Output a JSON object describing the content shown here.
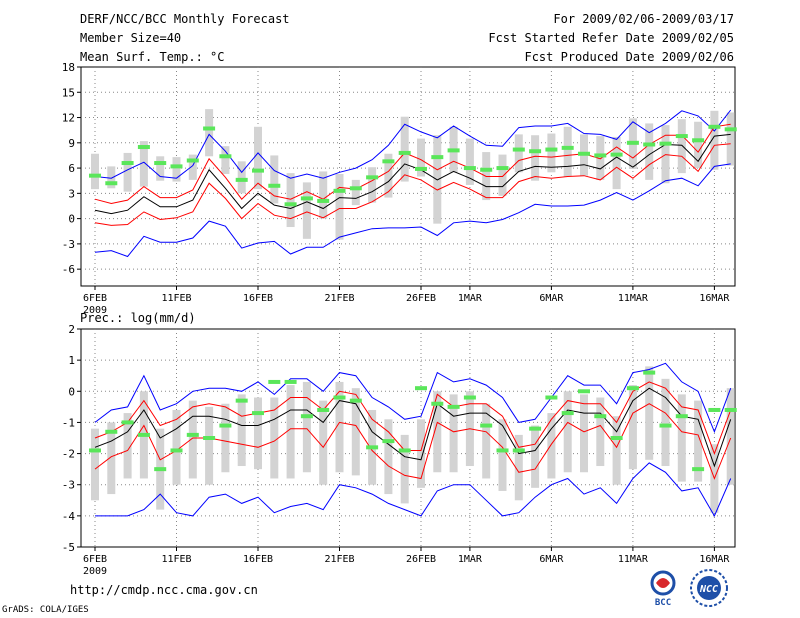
{
  "header": {
    "title": "DERF/NCC/BCC Monthly Forecast",
    "member_size": "Member Size=40",
    "variable1": "Mean Surf. Temp.: °C",
    "period": "For 2009/02/06-2009/03/17",
    "fcst_started": "Fcst Started Refer Date 2009/02/05",
    "fcst_produced": "Fcst Produced Date 2009/02/06"
  },
  "footer": {
    "url": "http://cmdp.ncc.cma.gov.cn",
    "credit": "GrADS: COLA/IGES",
    "logo1": "BCC",
    "logo2": "NCC"
  },
  "colors": {
    "max": "#0000ff",
    "min": "#0000ff",
    "upper": "#ff0000",
    "lower": "#ff0000",
    "mean": "#000000",
    "median": "#5ae65a",
    "box": "#d3d3d3"
  },
  "chart_data": [
    {
      "type": "line",
      "title": "Mean Surf. Temp.: °C",
      "ylim": [
        -8,
        18
      ],
      "yticks": [
        "-6",
        "-3",
        "0",
        "3",
        "6",
        "9",
        "12",
        "15",
        "18"
      ],
      "xticks": [
        "6FEB",
        "11FEB",
        "16FEB",
        "21FEB",
        "26FEB",
        "1MAR",
        "6MAR",
        "11MAR",
        "16MAR"
      ],
      "year_label": "2009",
      "series": [
        {
          "name": "max",
          "values": [
            -4,
            -3.8,
            -4.5,
            -2.1,
            -2.8,
            -2.8,
            -2.3,
            -0.3,
            -0.9,
            -3.5,
            -2.9,
            -2.7,
            -4.2,
            -3.4,
            -3.4,
            -2.2,
            -1.7,
            -1.2,
            -1.1,
            -1.1,
            -1.0,
            -2.0,
            -0.5,
            -0.3,
            -0.5,
            -0.1,
            0.7,
            1.7,
            1.5,
            1.5,
            1.6,
            2.2,
            3.1,
            2.2,
            3.3,
            4.5,
            4.8,
            3.9,
            6.2,
            6.5
          ]
        },
        {
          "name": "upper",
          "values": [
            2.3,
            1.8,
            2.2,
            3.8,
            2.5,
            2.5,
            3.4,
            7.1,
            4.9,
            2.3,
            4.2,
            2.7,
            2.3,
            3.2,
            2.3,
            3.7,
            3.5,
            4.5,
            5.6,
            7.8,
            7.0,
            5.8,
            6.8,
            6.0,
            5.0,
            5.0,
            6.9,
            7.4,
            7.3,
            7.5,
            7.7,
            7.1,
            8.5,
            7.2,
            8.8,
            9.9,
            9.9,
            7.9,
            10.9,
            11.2
          ]
        },
        {
          "name": "mean",
          "values": [
            1.0,
            0.6,
            1.0,
            2.6,
            1.4,
            1.4,
            2.2,
            5.8,
            3.6,
            1.2,
            3.0,
            1.6,
            1.2,
            2.0,
            1.2,
            2.5,
            2.4,
            3.2,
            4.4,
            6.5,
            5.8,
            4.6,
            5.6,
            4.8,
            3.8,
            3.8,
            5.6,
            6.2,
            6.1,
            6.2,
            6.4,
            5.9,
            7.3,
            6.1,
            7.6,
            8.8,
            8.7,
            6.8,
            9.8,
            10.0
          ]
        },
        {
          "name": "lower",
          "values": [
            -0.5,
            -0.8,
            -0.7,
            0.8,
            -0.1,
            0.1,
            0.8,
            4.2,
            2.4,
            0.0,
            1.8,
            0.4,
            0.0,
            0.8,
            0.1,
            1.2,
            1.2,
            2.0,
            3.2,
            5.2,
            4.6,
            3.4,
            4.3,
            3.5,
            2.5,
            2.5,
            4.4,
            5.0,
            4.8,
            5.0,
            5.1,
            4.6,
            6.1,
            4.8,
            6.4,
            7.6,
            7.4,
            5.6,
            8.7,
            8.9
          ]
        },
        {
          "name": "min",
          "values": [
            5.0,
            4.8,
            5.8,
            6.7,
            5.0,
            4.8,
            6.3,
            10.0,
            8.0,
            5.5,
            7.8,
            5.7,
            4.8,
            5.3,
            4.8,
            5.5,
            6.0,
            7.0,
            8.7,
            11.2,
            10.3,
            9.6,
            11.0,
            9.8,
            8.7,
            8.6,
            10.8,
            11.0,
            11.0,
            11.3,
            10.1,
            10.0,
            9.4,
            11.5,
            10.2,
            11.3,
            12.8,
            12.2,
            10.4,
            12.9
          ]
        },
        {
          "name": "median",
          "values": [
            5.1,
            4.2,
            6.6,
            8.5,
            6.6,
            6.2,
            6.9,
            10.7,
            7.4,
            4.6,
            5.7,
            3.9,
            1.7,
            2.4,
            2.1,
            3.3,
            3.6,
            4.9,
            6.8,
            7.8,
            5.9,
            7.3,
            8.1,
            6.0,
            5.8,
            6.0,
            8.2,
            8.0,
            8.2,
            8.4,
            7.7,
            7.5,
            7.6,
            9.0,
            8.8,
            8.9,
            9.8,
            9.3,
            10.9,
            10.6
          ]
        },
        {
          "name": "box_low",
          "values": [
            3.5,
            3.6,
            3.2,
            3.8,
            4.5,
            4.4,
            4.6,
            7.4,
            5.3,
            3.0,
            3.5,
            1.8,
            -1.0,
            -2.4,
            0.0,
            -2.5,
            1.6,
            1.9,
            2.5,
            4.4,
            5.0,
            -0.6,
            5.5,
            4.0,
            2.2,
            2.7,
            5.5,
            4.5,
            5.5,
            5.0,
            5.1,
            4.6,
            3.5,
            5.9,
            4.6,
            4.2,
            5.4,
            6.0,
            5.8,
            6.3
          ]
        },
        {
          "name": "box_high",
          "values": [
            7.7,
            6.2,
            7.8,
            9.2,
            7.4,
            7.3,
            7.6,
            13.0,
            8.6,
            6.8,
            10.9,
            7.5,
            5.4,
            4.3,
            5.6,
            5.3,
            4.6,
            6.1,
            7.7,
            12.1,
            9.5,
            9.9,
            10.9,
            9.5,
            7.9,
            7.6,
            10.0,
            9.9,
            10.1,
            10.9,
            10.0,
            9.8,
            9.7,
            11.9,
            11.3,
            11.1,
            11.8,
            11.5,
            12.8,
            12.6
          ]
        }
      ]
    },
    {
      "type": "line",
      "title": "Prec.: log(mm/d)",
      "ylim": [
        -5,
        2
      ],
      "yticks": [
        "-5",
        "-4",
        "-3",
        "-2",
        "-1",
        "0",
        "1",
        "2"
      ],
      "xticks": [
        "6FEB",
        "11FEB",
        "16FEB",
        "21FEB",
        "26FEB",
        "1MAR",
        "6MAR",
        "11MAR",
        "16MAR"
      ],
      "year_label": "2009",
      "series": [
        {
          "name": "max",
          "values": [
            -1.0,
            -0.6,
            -0.5,
            0.5,
            -0.6,
            -0.4,
            0.0,
            0.1,
            0.1,
            0.0,
            0.3,
            -0.1,
            0.4,
            0.4,
            0.0,
            0.6,
            0.5,
            -0.2,
            -0.5,
            -0.9,
            -0.8,
            0.6,
            0.3,
            0.4,
            0.2,
            -0.2,
            -1.0,
            -0.9,
            -0.2,
            0.5,
            0.2,
            0.2,
            -0.4,
            0.6,
            0.7,
            0.9,
            0.3,
            0.0,
            -1.3,
            0.1
          ]
        },
        {
          "name": "upper",
          "values": [
            -1.5,
            -1.3,
            -1.0,
            -0.3,
            -1.1,
            -0.9,
            -0.5,
            -0.4,
            -0.5,
            -0.8,
            -0.7,
            -0.6,
            -0.2,
            -0.2,
            -0.6,
            0.0,
            -0.1,
            -0.9,
            -1.3,
            -1.9,
            -1.9,
            -0.1,
            -0.5,
            -0.4,
            -0.4,
            -0.8,
            -1.8,
            -1.7,
            -0.9,
            -0.3,
            -0.4,
            -0.4,
            -1.0,
            0.0,
            0.3,
            0.1,
            -0.5,
            -0.6,
            -2.0,
            -0.6
          ]
        },
        {
          "name": "mean",
          "values": [
            -1.8,
            -1.6,
            -1.3,
            -0.6,
            -1.5,
            -1.2,
            -0.8,
            -0.8,
            -0.9,
            -1.1,
            -1.1,
            -0.9,
            -0.6,
            -0.6,
            -1.0,
            -0.3,
            -0.4,
            -1.3,
            -1.7,
            -2.1,
            -2.2,
            -0.4,
            -0.8,
            -0.7,
            -0.7,
            -1.1,
            -2.0,
            -1.9,
            -1.2,
            -0.6,
            -0.7,
            -0.7,
            -1.3,
            -0.3,
            0.1,
            -0.2,
            -0.8,
            -0.9,
            -2.4,
            -0.9
          ]
        },
        {
          "name": "lower",
          "values": [
            -2.5,
            -2.1,
            -1.9,
            -1.1,
            -2.2,
            -1.9,
            -1.5,
            -1.5,
            -1.6,
            -1.7,
            -1.8,
            -1.6,
            -1.2,
            -1.2,
            -1.8,
            -1.0,
            -1.1,
            -1.9,
            -2.4,
            -2.7,
            -2.8,
            -1.0,
            -1.3,
            -1.2,
            -1.3,
            -1.8,
            -2.6,
            -2.5,
            -1.7,
            -1.0,
            -1.3,
            -1.1,
            -1.8,
            -0.7,
            -0.4,
            -0.7,
            -1.3,
            -1.4,
            -2.8,
            -1.5
          ]
        },
        {
          "name": "min",
          "values": [
            -4.0,
            -4.0,
            -4.0,
            -3.8,
            -3.3,
            -3.9,
            -4.0,
            -3.4,
            -3.3,
            -3.6,
            -3.4,
            -3.9,
            -3.7,
            -3.6,
            -3.8,
            -3.0,
            -3.1,
            -3.3,
            -3.6,
            -3.8,
            -4.0,
            -3.2,
            -3.0,
            -3.0,
            -3.5,
            -4.0,
            -3.9,
            -3.4,
            -3.0,
            -2.8,
            -3.3,
            -3.1,
            -3.6,
            -2.8,
            -2.3,
            -2.6,
            -3.2,
            -3.1,
            -4.0,
            -2.8
          ]
        },
        {
          "name": "median",
          "values": [
            -1.9,
            -1.3,
            -1.0,
            -1.4,
            -2.5,
            -1.9,
            -1.4,
            -1.5,
            -1.1,
            -0.3,
            -0.7,
            0.3,
            0.3,
            -0.8,
            -0.6,
            -0.2,
            -0.3,
            -1.8,
            -1.6,
            -1.9,
            0.1,
            -0.4,
            -0.5,
            -0.2,
            -1.1,
            -1.9,
            -1.9,
            -1.2,
            -0.2,
            -0.7,
            0.0,
            -0.8,
            -1.5,
            0.1,
            0.6,
            -1.1,
            -0.8,
            -2.5,
            -0.6,
            -0.6
          ]
        },
        {
          "name": "box_low",
          "values": [
            -3.5,
            -3.3,
            -2.8,
            -2.8,
            -3.8,
            -3.0,
            -2.8,
            -3.0,
            -2.6,
            -2.4,
            -2.5,
            -2.8,
            -2.8,
            -2.6,
            -3.0,
            -2.6,
            -2.7,
            -3.0,
            -3.3,
            -3.6,
            -3.1,
            -2.6,
            -2.6,
            -2.4,
            -2.8,
            -3.2,
            -3.5,
            -3.1,
            -2.8,
            -2.6,
            -2.6,
            -2.4,
            -3.0,
            -2.5,
            -2.2,
            -2.4,
            -2.9,
            -2.9,
            -3.9,
            -3.0
          ]
        },
        {
          "name": "box_high",
          "values": [
            -1.2,
            -1.0,
            -0.7,
            0.0,
            -1.2,
            -0.6,
            -0.3,
            -0.5,
            -0.4,
            -0.1,
            -0.2,
            -0.2,
            0.2,
            0.3,
            -0.3,
            0.3,
            0.1,
            -0.6,
            -0.9,
            -1.4,
            -0.9,
            0.0,
            -0.1,
            0.0,
            -0.4,
            -0.9,
            -1.4,
            -1.1,
            -0.7,
            0.0,
            -0.1,
            -0.2,
            -0.8,
            0.2,
            0.8,
            0.4,
            -0.1,
            -0.3,
            -1.7,
            0.1
          ]
        }
      ]
    }
  ]
}
